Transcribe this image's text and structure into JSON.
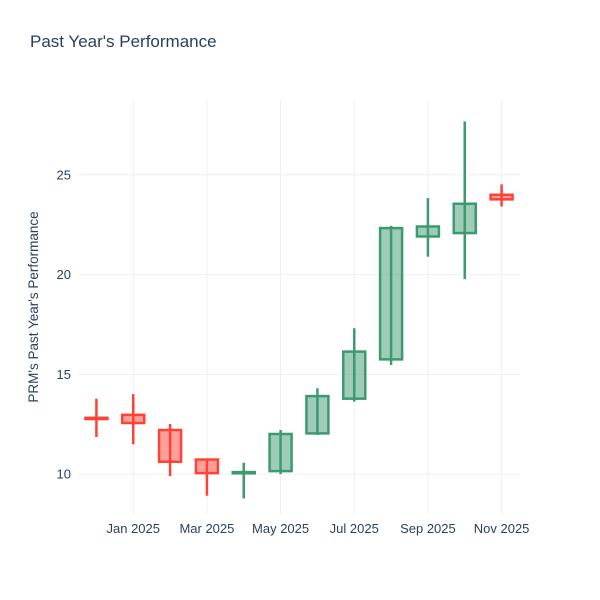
{
  "page": {
    "background": "#FFFFFF"
  },
  "chart_data": {
    "type": "candlestick",
    "title": "Past Year's Performance",
    "ylabel": "PRM's Past Year's Performance",
    "xlabel": "",
    "categories": [
      "Dec 2024",
      "Jan 2025",
      "Feb 2025",
      "Mar 2025",
      "Apr 2025",
      "May 2025",
      "Jun 2025",
      "Jul 2025",
      "Aug 2025",
      "Sep 2025",
      "Oct 2025",
      "Nov 2025"
    ],
    "series": [
      {
        "name": "PRM",
        "open": [
          12.82,
          12.97,
          12.21,
          10.73,
          10.04,
          10.15,
          12.04,
          13.78,
          15.75,
          21.91,
          22.08,
          24.0
        ],
        "high": [
          13.78,
          14.01,
          12.51,
          10.76,
          10.57,
          12.21,
          14.3,
          17.31,
          22.44,
          23.83,
          27.68,
          24.52
        ],
        "low": [
          11.86,
          11.5,
          9.9,
          8.92,
          8.78,
          10.0,
          11.96,
          13.63,
          15.47,
          20.9,
          19.77,
          23.41
        ],
        "close": [
          12.76,
          12.56,
          10.62,
          10.05,
          10.1,
          12.01,
          13.91,
          16.14,
          22.33,
          22.41,
          23.55,
          23.77
        ]
      }
    ],
    "x_tick_labels": [
      "Jan 2025",
      "Mar 2025",
      "May 2025",
      "Jul 2025",
      "Sep 2025",
      "Nov 2025"
    ],
    "x_tick_indices": [
      1,
      3,
      5,
      7,
      9,
      11
    ],
    "y_ticks": [
      10,
      15,
      20,
      25
    ],
    "ylim": [
      8.0,
      28.75
    ],
    "grid": true,
    "legend": "none",
    "colors": {
      "increasing": "#3D9970",
      "decreasing": "#FF4136",
      "increasing_fill": "rgba(61,153,112,0.5)",
      "decreasing_fill": "rgba(255,65,54,0.5)",
      "grid": "#EBF0F8",
      "text": "#2A3F5F",
      "background": "#FFFFFF"
    }
  }
}
